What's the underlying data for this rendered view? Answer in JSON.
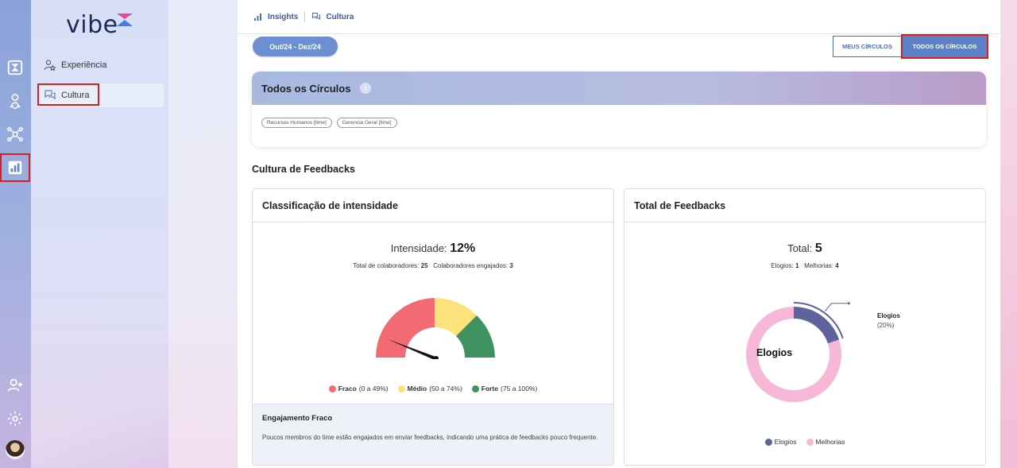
{
  "brand": {
    "name": "vibe"
  },
  "colors": {
    "accent": "#5b82c9",
    "weak": "#f26b73",
    "medium": "#fbe27a",
    "strong": "#3f9260",
    "praise": "#5e639e",
    "improve": "#f7b7d7"
  },
  "sidebar": {
    "items": [
      {
        "label": "Experiência",
        "icon": "user-star-icon"
      },
      {
        "label": "Cultura",
        "icon": "chat-bubbles-icon"
      }
    ]
  },
  "breadcrumb": {
    "first": "Insights",
    "second": "Cultura"
  },
  "period": {
    "label": "Out/24 - Dez/24"
  },
  "toggle": {
    "mine": "MEUS CÍRCULOS",
    "all": "TODOS OS CÍRCULOS"
  },
  "circles": {
    "title": "Todos os Círculos",
    "info": "i",
    "chips": [
      "Recursos Humanos [time]",
      "Gerencia Geral [time]"
    ]
  },
  "section_title": "Cultura de Feedbacks",
  "intensity": {
    "title": "Classificação de intensidade",
    "label": "Intensidade:",
    "value": "12%",
    "collab_label": "Total de colaboradores:",
    "collab_value": "25",
    "engaged_label": "Colaboradores engajados:",
    "engaged_value": "3",
    "legend": [
      {
        "name": "Fraco",
        "range": "(0 a 49%)"
      },
      {
        "name": "Médio",
        "range": "(50 a 74%)"
      },
      {
        "name": "Forte",
        "range": "(75 a 100%)"
      }
    ],
    "engagement_title": "Engajamento Fraco",
    "engagement_text": "Poucos membros do time estão engajados em enviar feedbacks, indicando uma prática de feedbacks pouco frequente."
  },
  "feedbacks": {
    "title": "Total de Feedbacks",
    "label": "Total:",
    "value": "5",
    "praise_label": "Elogios:",
    "praise_value": "1",
    "improve_label": "Melhorias:",
    "improve_value": "4",
    "center_label": "Elogios",
    "callout_name": "Elogios",
    "callout_pct": "(20%)",
    "legend": [
      "Elogios",
      "Melhorias"
    ]
  },
  "chart_data": {
    "type": "pie",
    "categories": [
      "Elogios",
      "Melhorias"
    ],
    "values": [
      1,
      4
    ]
  }
}
